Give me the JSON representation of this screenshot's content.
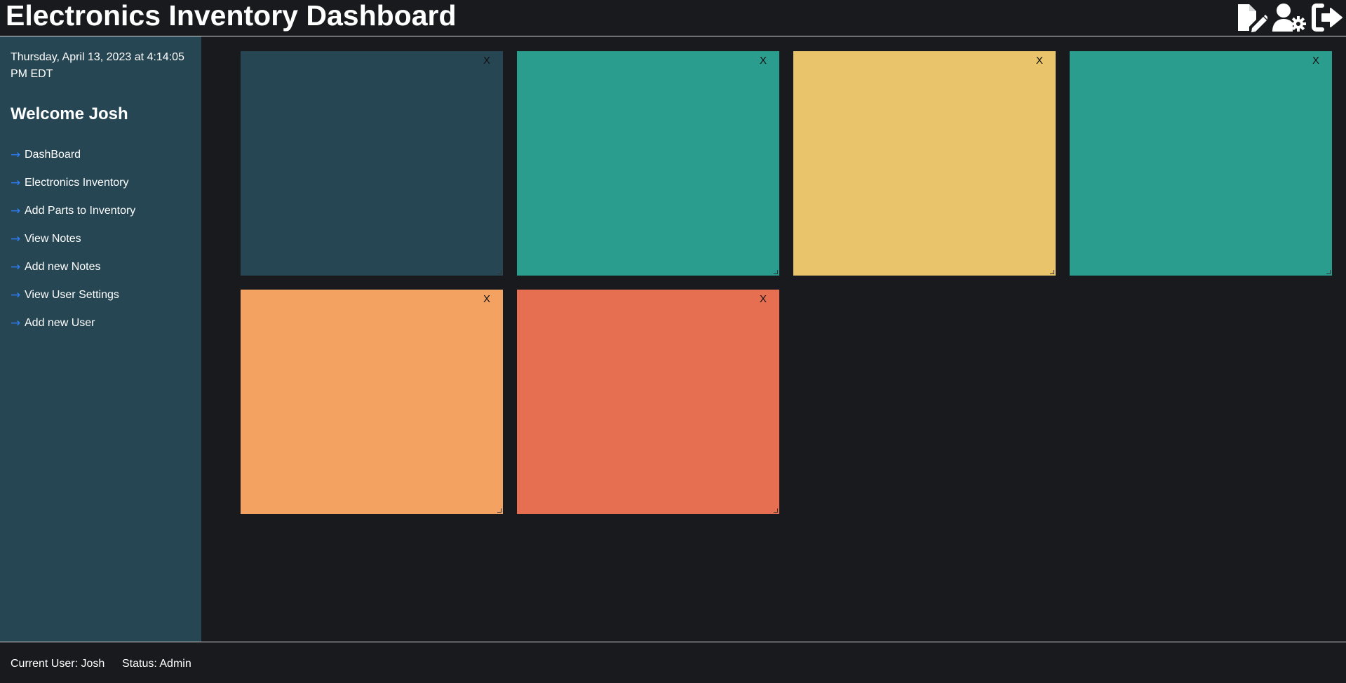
{
  "header": {
    "title": "Electronics Inventory Dashboard",
    "icons": [
      "note-edit-icon",
      "user-settings-icon",
      "logout-icon"
    ]
  },
  "sidebar": {
    "datetime": "Thursday, April 13, 2023 at 4:14:05 PM EDT",
    "welcome": "Welcome Josh",
    "arrow": "→",
    "items": [
      {
        "label": "DashBoard"
      },
      {
        "label": "Electronics Inventory"
      },
      {
        "label": "Add Parts to Inventory"
      },
      {
        "label": "View Notes"
      },
      {
        "label": "Add new Notes"
      },
      {
        "label": "View User Settings"
      },
      {
        "label": "Add new User"
      }
    ]
  },
  "notes": [
    {
      "color": "#264653",
      "close_label": "X"
    },
    {
      "color": "#2a9d8f",
      "close_label": "X"
    },
    {
      "color": "#e9c46a",
      "close_label": "X"
    },
    {
      "color": "#2a9d8f",
      "close_label": "X"
    },
    {
      "color": "#f4a261",
      "close_label": "X"
    },
    {
      "color": "#e76f51",
      "close_label": "X"
    }
  ],
  "footer": {
    "current_user": "Current User: Josh",
    "status": "Status: Admin"
  }
}
